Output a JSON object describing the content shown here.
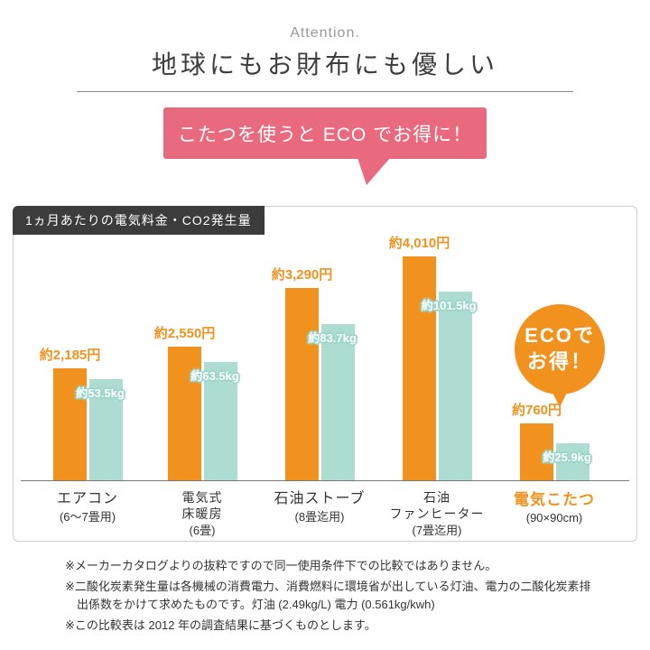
{
  "header": {
    "eyebrow": "Attention.",
    "title": "地球にもお財布にも優しい"
  },
  "bubble": {
    "text": "こたつを使うと ECO でお得に！"
  },
  "chart": {
    "title": "1ヵ月あたりの電気料金・CO2発生量",
    "eco_badge": {
      "line1": "ECOで",
      "line2": "お得！"
    },
    "groups": [
      {
        "cost_label": "約2,185円",
        "co2_label": "約53.5kg",
        "name_lines": [
          "エアコン",
          "(6〜7畳用)"
        ]
      },
      {
        "cost_label": "約2,550円",
        "co2_label": "約63.5kg",
        "name_lines": [
          "電気式",
          "床暖房",
          "(6畳)"
        ]
      },
      {
        "cost_label": "約3,290円",
        "co2_label": "約83.7kg",
        "name_lines": [
          "石油ストーブ",
          "(8畳迄用)"
        ]
      },
      {
        "cost_label": "約4,010円",
        "co2_label": "約101.5kg",
        "name_lines": [
          "石油",
          "ファンヒーター",
          "(7畳迄用)"
        ]
      },
      {
        "cost_label": "約760円",
        "co2_label": "約25.9kg",
        "name_lines": [
          "電気こたつ",
          "(90×90cm)"
        ]
      }
    ]
  },
  "chart_data": {
    "type": "bar",
    "title": "1ヵ月あたりの電気料金・CO2発生量",
    "categories": [
      "エアコン(6〜7畳用)",
      "電気式床暖房(6畳)",
      "石油ストーブ(8畳迄用)",
      "石油ファンヒーター(7畳迄用)",
      "電気こたつ(90×90cm)"
    ],
    "series": [
      {
        "name": "電気料金",
        "unit": "円",
        "color": "#f2921e",
        "values": [
          2185,
          2550,
          3290,
          4010,
          760
        ]
      },
      {
        "name": "CO2発生量",
        "unit": "kg",
        "color": "#acdcd2",
        "values": [
          53.5,
          63.5,
          83.7,
          101.5,
          25.9
        ]
      }
    ],
    "value_labels": {
      "cost": [
        "約2,185円",
        "約2,550円",
        "約3,290円",
        "約4,010円",
        "約760円"
      ],
      "co2": [
        "約53.5kg",
        "約63.5kg",
        "約83.7kg",
        "約101.5kg",
        "約25.9kg"
      ]
    },
    "legend": "none",
    "grid": false,
    "highlight_category_index": 4
  },
  "colors": {
    "cost_bar": "#f2921e",
    "co2_bar": "#acdcd2",
    "bubble": "#e96a7e",
    "tab": "#3c3c3c"
  },
  "footnotes": [
    "※メーカーカタログよりの抜粋ですので同一使用条件下での比較ではありません。",
    "※二酸化炭素発生量は各機械の消費電力、消費燃料に環境省が出している灯油、電力の二酸化炭素排出係数をかけて求めたものです。灯油 (2.49kg/L) 電力 (0.561kg/kwh)",
    "※この比較表は 2012 年の調査結果に基づくものとします。"
  ]
}
